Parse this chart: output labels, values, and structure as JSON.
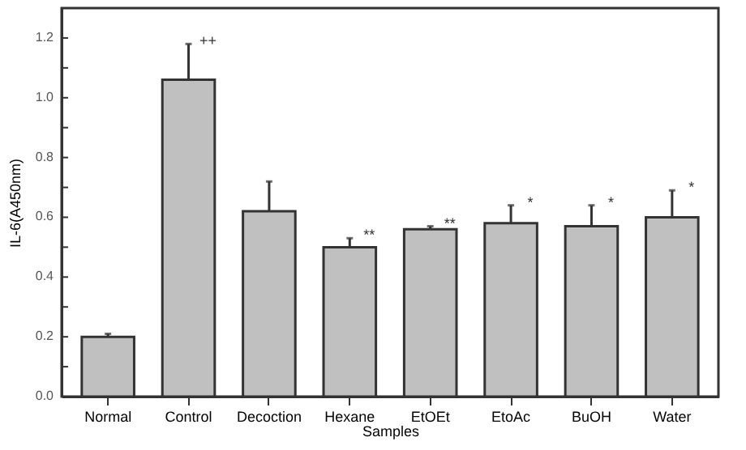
{
  "chart_data": {
    "type": "bar",
    "xlabel": "Samples",
    "ylabel": "IL-6(A450nm)",
    "categories": [
      "Normal",
      "Control",
      "Decoction",
      "Hexane",
      "EtOEt",
      "EtoAc",
      "BuOH",
      "Water"
    ],
    "values": [
      0.2,
      1.06,
      0.62,
      0.5,
      0.56,
      0.58,
      0.57,
      0.6
    ],
    "errors": [
      0.01,
      0.12,
      0.1,
      0.03,
      0.01,
      0.06,
      0.07,
      0.09
    ],
    "color": "#c0c0c0",
    "ylim": [
      0,
      1.3
    ],
    "yticks": [
      {
        "value": 0,
        "label": "0.0"
      },
      {
        "value": 0.1,
        "label": null
      },
      0.2,
      {
        "value": 0.3,
        "label": null
      },
      0.4,
      {
        "value": 0.5,
        "label": null
      },
      0.6,
      {
        "value": 0.7,
        "label": null
      },
      0.8,
      {
        "value": 0.9,
        "label": null
      },
      {
        "value": 1,
        "label": "1.0"
      },
      {
        "value": 1.1,
        "label": null
      },
      1.2
    ],
    "grid": false,
    "annotations": [
      {
        "text": "++",
        "x": "Control",
        "y": 1.18
      },
      {
        "text": "**",
        "x": "Hexane",
        "y": 0.53
      },
      {
        "text": "**",
        "x": "EtOEt",
        "y": 0.57
      },
      {
        "text": "*",
        "x": "EtoAc",
        "y": 0.64
      },
      {
        "text": "*",
        "x": "BuOH",
        "y": 0.64
      },
      {
        "text": "*",
        "x": "Water",
        "y": 0.69
      }
    ]
  }
}
